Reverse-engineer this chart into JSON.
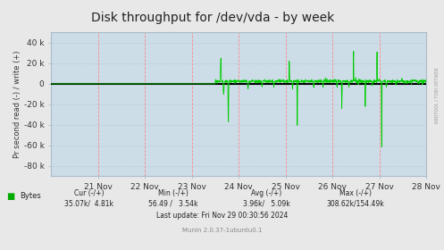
{
  "title": "Disk throughput for /dev/vda - by week",
  "ylabel": "Pr second read (-) / write (+)",
  "background_color": "#e8e8e8",
  "plot_bg_color": "#ccdde8",
  "ylim": [
    -90000,
    50000
  ],
  "yticks": [
    -80000,
    -60000,
    -40000,
    -20000,
    0,
    20000,
    40000
  ],
  "ytick_labels": [
    "-80 k",
    "-60 k",
    "-40 k",
    "-20 k",
    "0",
    "20 k",
    "40 k"
  ],
  "xlim": [
    0,
    8
  ],
  "x_day_labels": [
    "21 Nov",
    "22 Nov",
    "23 Nov",
    "24 Nov",
    "25 Nov",
    "26 Nov",
    "27 Nov",
    "28 Nov"
  ],
  "x_day_positions": [
    1,
    2,
    3,
    4,
    5,
    6,
    7,
    8
  ],
  "zero_line_color": "#000000",
  "line_color": "#00cc00",
  "rrdtool_text": "RRDTOOL / TOBI OETIKER",
  "legend_color": "#00aa00",
  "legend_label": "Bytes",
  "cur_label": "Cur (-/+)",
  "cur_value": "35.07k/  4.81k",
  "min_label": "Min (-/+)",
  "min_value": "56.49 /   3.54k",
  "avg_label": "Avg (-/+)",
  "avg_value": "3.96k/   5.09k",
  "max_label": "Max (-/+)",
  "max_value": "308.62k/154.49k",
  "last_update": "Last update: Fri Nov 29 00:30:56 2024",
  "munin_version": "Munin 2.0.37-1ubuntu0.1",
  "title_fontsize": 10,
  "axis_fontsize": 6.5,
  "label_fontsize": 6,
  "border_color": "#aabbcc"
}
